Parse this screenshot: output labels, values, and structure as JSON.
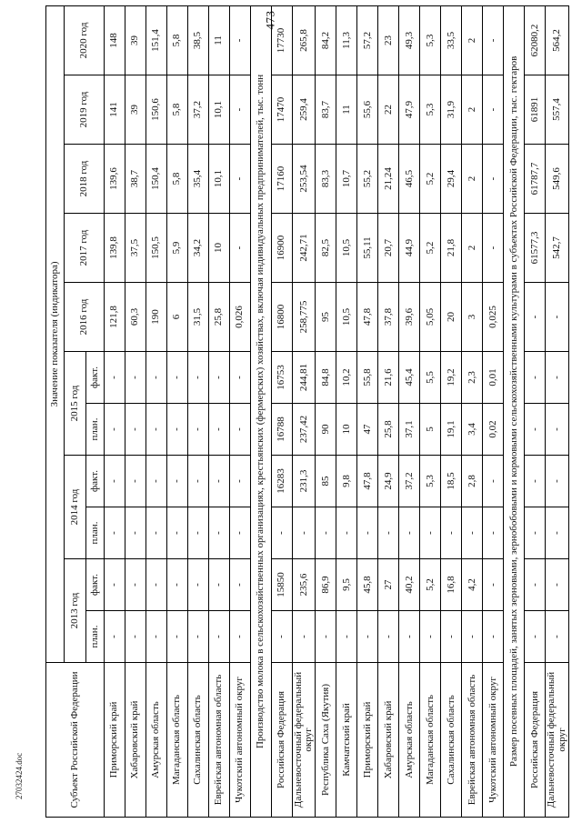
{
  "page": {
    "number": "473",
    "footer": "27032424.doc"
  },
  "table": {
    "header": {
      "subject": "Субъект Российской Федерации",
      "indicator": "Значение показателя (индикатора)",
      "years": [
        {
          "label": "2013 год",
          "sub": [
            "план.",
            "факт."
          ]
        },
        {
          "label": "2014 год",
          "sub": [
            "план.",
            "факт."
          ]
        },
        {
          "label": "2015 год",
          "sub": [
            "план.",
            "факт."
          ]
        },
        {
          "label": "2016 год"
        },
        {
          "label": "2017 год"
        },
        {
          "label": "2018 год"
        },
        {
          "label": "2019 год"
        },
        {
          "label": "2020 год"
        }
      ]
    },
    "rows": [
      {
        "name": "Приморский край",
        "values": [
          "-",
          "-",
          "-",
          "-",
          "-",
          "-",
          "121,8",
          "139,8",
          "139,6",
          "141",
          "148"
        ]
      },
      {
        "name": "Хабаровский край",
        "values": [
          "-",
          "-",
          "-",
          "-",
          "-",
          "-",
          "60,3",
          "37,5",
          "38,7",
          "39",
          "39"
        ]
      },
      {
        "name": "Амурская область",
        "values": [
          "-",
          "-",
          "-",
          "-",
          "-",
          "-",
          "190",
          "150,5",
          "150,4",
          "150,6",
          "151,4"
        ]
      },
      {
        "name": "Магаданская область",
        "values": [
          "-",
          "-",
          "-",
          "-",
          "-",
          "-",
          "6",
          "5,9",
          "5,8",
          "5,8",
          "5,8"
        ]
      },
      {
        "name": "Сахалинская область",
        "values": [
          "-",
          "-",
          "-",
          "-",
          "-",
          "-",
          "31,5",
          "34,2",
          "35,4",
          "37,2",
          "38,5"
        ]
      },
      {
        "name": "Еврейская автономная область",
        "values": [
          "-",
          "-",
          "-",
          "-",
          "-",
          "-",
          "25,8",
          "10",
          "10,1",
          "10,1",
          "11"
        ]
      },
      {
        "name": "Чукотский автономный округ",
        "values": [
          "-",
          "-",
          "-",
          "-",
          "-",
          "-",
          "0,026",
          "-",
          "-",
          "-",
          "-"
        ]
      },
      {
        "section": "Производство молока в сельскохозяйственных организациях, крестьянских (фермерских) хозяйствах, включая индивидуальных предпринимателей, тыс. тонн"
      },
      {
        "name": "Российская Федерация",
        "values": [
          "-",
          "15850",
          "-",
          "16283",
          "16788",
          "16753",
          "16800",
          "16900",
          "17160",
          "17470",
          "17730"
        ]
      },
      {
        "name": "Дальневосточный федеральный округ",
        "values": [
          "-",
          "235,6",
          "-",
          "231,3",
          "237,42",
          "244,81",
          "258,775",
          "242,71",
          "253,54",
          "259,4",
          "265,8"
        ]
      },
      {
        "name": "Республика Саха (Якутия)",
        "values": [
          "-",
          "86,9",
          "-",
          "85",
          "90",
          "84,8",
          "95",
          "82,5",
          "83,3",
          "83,7",
          "84,2"
        ]
      },
      {
        "name": "Камчатский край",
        "values": [
          "-",
          "9,5",
          "-",
          "9,8",
          "10",
          "10,2",
          "10,5",
          "10,5",
          "10,7",
          "11",
          "11,3"
        ]
      },
      {
        "name": "Приморский край",
        "values": [
          "-",
          "45,8",
          "-",
          "47,8",
          "47",
          "55,8",
          "47,8",
          "55,11",
          "55,2",
          "55,6",
          "57,2"
        ]
      },
      {
        "name": "Хабаровский край",
        "values": [
          "-",
          "27",
          "-",
          "24,9",
          "25,8",
          "21,6",
          "37,8",
          "20,7",
          "21,24",
          "22",
          "23"
        ]
      },
      {
        "name": "Амурская область",
        "values": [
          "-",
          "40,2",
          "-",
          "37,2",
          "37,1",
          "45,4",
          "39,6",
          "44,9",
          "46,5",
          "47,9",
          "49,3"
        ]
      },
      {
        "name": "Магаданская область",
        "values": [
          "-",
          "5,2",
          "-",
          "5,3",
          "5",
          "5,5",
          "5,05",
          "5,2",
          "5,2",
          "5,3",
          "5,3"
        ]
      },
      {
        "name": "Сахалинская область",
        "values": [
          "-",
          "16,8",
          "-",
          "18,5",
          "19,1",
          "19,2",
          "20",
          "21,8",
          "29,4",
          "31,9",
          "33,5"
        ]
      },
      {
        "name": "Еврейская автономная область",
        "values": [
          "-",
          "4,2",
          "-",
          "2,8",
          "3,4",
          "2,3",
          "3",
          "2",
          "2",
          "2",
          "2"
        ]
      },
      {
        "name": "Чукотский автономный округ",
        "values": [
          "-",
          "-",
          "-",
          "-",
          "0,02",
          "0,01",
          "0,025",
          "-",
          "-",
          "-",
          "-"
        ]
      },
      {
        "section": "Размер посевных площадей, занятых зерновыми, зернобобовыми и кормовыми сельскохозяйственными культурами в субъектах Российской Федерации, тыс. гектаров"
      },
      {
        "name": "Российская Федерация",
        "values": [
          "-",
          "-",
          "-",
          "-",
          "-",
          "-",
          "-",
          "61577,3",
          "61787,7",
          "61891",
          "62080,2"
        ]
      },
      {
        "name": "Дальневосточный федеральный округ",
        "values": [
          "-",
          "-",
          "-",
          "-",
          "-",
          "-",
          "-",
          "542,7",
          "549,6",
          "557,4",
          "564,2"
        ]
      }
    ]
  }
}
